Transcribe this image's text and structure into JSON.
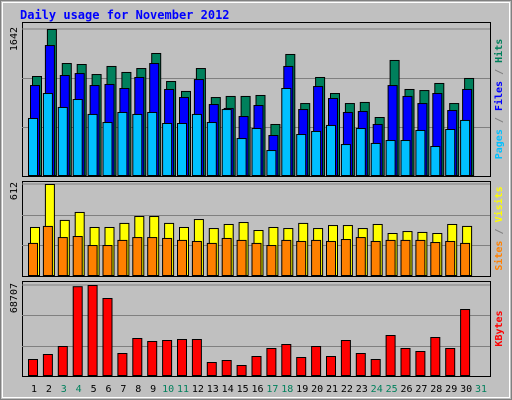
{
  "title": "Daily usage for November 2012",
  "legend_separator": "/",
  "chart_data": [
    {
      "type": "bar",
      "ylim": [
        0,
        1642
      ],
      "yticks": [
        1642
      ],
      "series": [
        {
          "name": "Hits",
          "color": "#00805c",
          "values": [
            1117,
            1642,
            1262,
            1251,
            1139,
            1229,
            1162,
            1206,
            1374,
            1061,
            950,
            1206,
            882,
            894,
            894,
            905,
            581,
            1363,
            815,
            1106,
            927,
            815,
            827,
            659,
            1296,
            972,
            960,
            1039,
            815,
            1095,
            null
          ]
        },
        {
          "name": "Files",
          "color": "#0000ff",
          "values": [
            1016,
            1463,
            1128,
            1150,
            1016,
            1028,
            983,
            1106,
            1262,
            972,
            882,
            1083,
            804,
            760,
            670,
            793,
            458,
            1229,
            748,
            1005,
            871,
            715,
            726,
            581,
            1016,
            894,
            815,
            927,
            737,
            972,
            null
          ]
        },
        {
          "name": "Pages",
          "color": "#00c0ff",
          "values": [
            648,
            927,
            771,
            860,
            693,
            603,
            715,
            693,
            715,
            592,
            592,
            693,
            603,
            748,
            424,
            536,
            290,
            983,
            469,
            503,
            570,
            357,
            536,
            369,
            402,
            402,
            514,
            335,
            525,
            626,
            null
          ]
        }
      ]
    },
    {
      "type": "bar",
      "ylim": [
        0,
        612
      ],
      "yticks": [
        612
      ],
      "series": [
        {
          "name": "Visits",
          "color": "#ffff00",
          "values": [
            326,
            612,
            373,
            426,
            326,
            326,
            353,
            399,
            399,
            353,
            326,
            379,
            319,
            346,
            359,
            306,
            326,
            319,
            353,
            319,
            339,
            339,
            319,
            346,
            286,
            299,
            293,
            286,
            346,
            333,
            null
          ]
        },
        {
          "name": "Sites",
          "color": "#ff8000",
          "values": [
            220,
            333,
            259,
            266,
            206,
            206,
            240,
            259,
            259,
            253,
            240,
            233,
            220,
            253,
            240,
            220,
            206,
            240,
            233,
            240,
            233,
            246,
            259,
            233,
            240,
            240,
            240,
            226,
            233,
            220,
            null
          ]
        }
      ]
    },
    {
      "type": "bar",
      "ylim": [
        0,
        68707
      ],
      "yticks": [
        68707
      ],
      "categories": [
        "1",
        "2",
        "3",
        "4",
        "5",
        "6",
        "7",
        "8",
        "9",
        "10",
        "11",
        "12",
        "13",
        "14",
        "15",
        "16",
        "17",
        "18",
        "19",
        "20",
        "21",
        "22",
        "23",
        "24",
        "25",
        "26",
        "27",
        "28",
        "29",
        "30",
        "31"
      ],
      "category_colors": [
        "#000000",
        "#000000",
        "#00805c",
        "#00805c",
        "#000000",
        "#000000",
        "#000000",
        "#000000",
        "#000000",
        "#00805c",
        "#00805c",
        "#000000",
        "#000000",
        "#000000",
        "#000000",
        "#000000",
        "#00805c",
        "#00805c",
        "#000000",
        "#000000",
        "#000000",
        "#000000",
        "#000000",
        "#00805c",
        "#00805c",
        "#000000",
        "#000000",
        "#000000",
        "#000000",
        "#000000",
        "#00805c"
      ],
      "series": [
        {
          "name": "KBytes",
          "color": "#ff0000",
          "values": [
            12835,
            16610,
            22650,
            67800,
            68707,
            58890,
            17365,
            28690,
            26430,
            27180,
            27930,
            27930,
            10570,
            12080,
            8305,
            15100,
            21140,
            24160,
            14345,
            22650,
            15100,
            27180,
            17365,
            12835,
            30955,
            21140,
            18875,
            29445,
            21140,
            50580,
            null
          ]
        }
      ]
    }
  ]
}
